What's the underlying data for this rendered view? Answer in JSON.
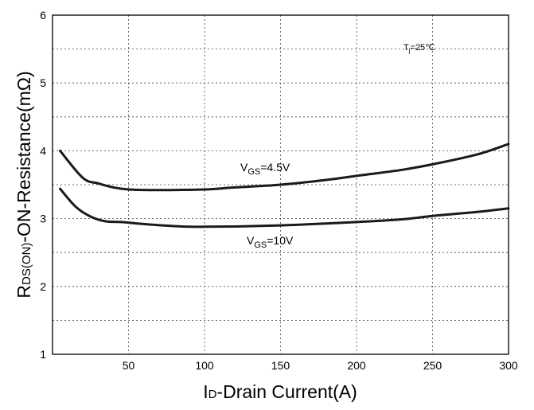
{
  "chart_data": {
    "type": "line",
    "title": "",
    "xlabel": {
      "main": "I",
      "sub": "D",
      "rest": "-Drain Current(A)"
    },
    "ylabel": {
      "main": "R",
      "sub": "DS(ON)",
      "rest": "-ON-Resistance(mΩ)"
    },
    "xlim": [
      0,
      300
    ],
    "ylim": [
      1,
      6
    ],
    "x_ticks": [
      50,
      100,
      150,
      200,
      250,
      300
    ],
    "y_ticks": [
      1,
      2,
      3,
      4,
      5,
      6
    ],
    "x_grid": [
      50,
      100,
      150,
      200,
      250
    ],
    "y_grid": [
      1.5,
      2,
      2.5,
      3,
      3.5,
      4,
      4.5,
      5,
      5.5
    ],
    "grid": true,
    "series": [
      {
        "label": {
          "main": "V",
          "sub": "GS",
          "rest": "=4.5V"
        },
        "points": [
          [
            5,
            4.0
          ],
          [
            20,
            3.6
          ],
          [
            30,
            3.52
          ],
          [
            40,
            3.46
          ],
          [
            50,
            3.43
          ],
          [
            70,
            3.42
          ],
          [
            100,
            3.43
          ],
          [
            120,
            3.46
          ],
          [
            150,
            3.5
          ],
          [
            180,
            3.57
          ],
          [
            200,
            3.63
          ],
          [
            230,
            3.72
          ],
          [
            250,
            3.8
          ],
          [
            280,
            3.95
          ],
          [
            300,
            4.1
          ]
        ]
      },
      {
        "label": {
          "main": "V",
          "sub": "GS",
          "rest": "=10V"
        },
        "points": [
          [
            5,
            3.44
          ],
          [
            15,
            3.18
          ],
          [
            25,
            3.03
          ],
          [
            35,
            2.96
          ],
          [
            45,
            2.95
          ],
          [
            60,
            2.92
          ],
          [
            80,
            2.89
          ],
          [
            100,
            2.88
          ],
          [
            150,
            2.9
          ],
          [
            200,
            2.95
          ],
          [
            230,
            2.99
          ],
          [
            250,
            3.04
          ],
          [
            280,
            3.1
          ],
          [
            300,
            3.15
          ]
        ]
      }
    ],
    "annotations": [
      {
        "main": "T",
        "sub": "j",
        "rest": "=25℃"
      }
    ]
  }
}
